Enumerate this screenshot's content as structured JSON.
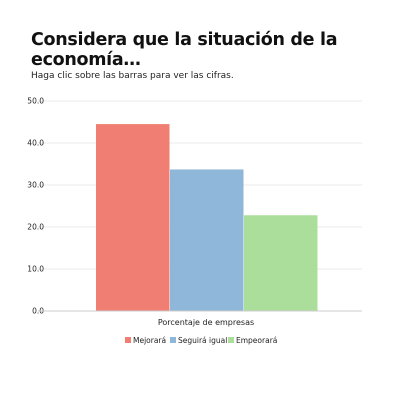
{
  "header": {
    "title": "Considera que la situación de la economía…",
    "subtitle": "Haga clic sobre las barras para ver las cifras."
  },
  "chart_data": {
    "type": "bar",
    "categories": [
      "Porcentaje de empresas"
    ],
    "series": [
      {
        "name": "Mejorará",
        "values": [
          44.5
        ],
        "color": "#f17e73"
      },
      {
        "name": "Seguirá igual",
        "values": [
          33.7
        ],
        "color": "#8fb7d9"
      },
      {
        "name": "Empeorará",
        "values": [
          22.8
        ],
        "color": "#abde9b"
      }
    ],
    "xlabel": "Porcentaje de empresas",
    "ylabel": "",
    "ylim": [
      0,
      50
    ],
    "yticks": [
      "0.0",
      "10.0",
      "20.0",
      "30.0",
      "40.0",
      "50.0"
    ],
    "grid": true,
    "legend_position": "bottom"
  }
}
